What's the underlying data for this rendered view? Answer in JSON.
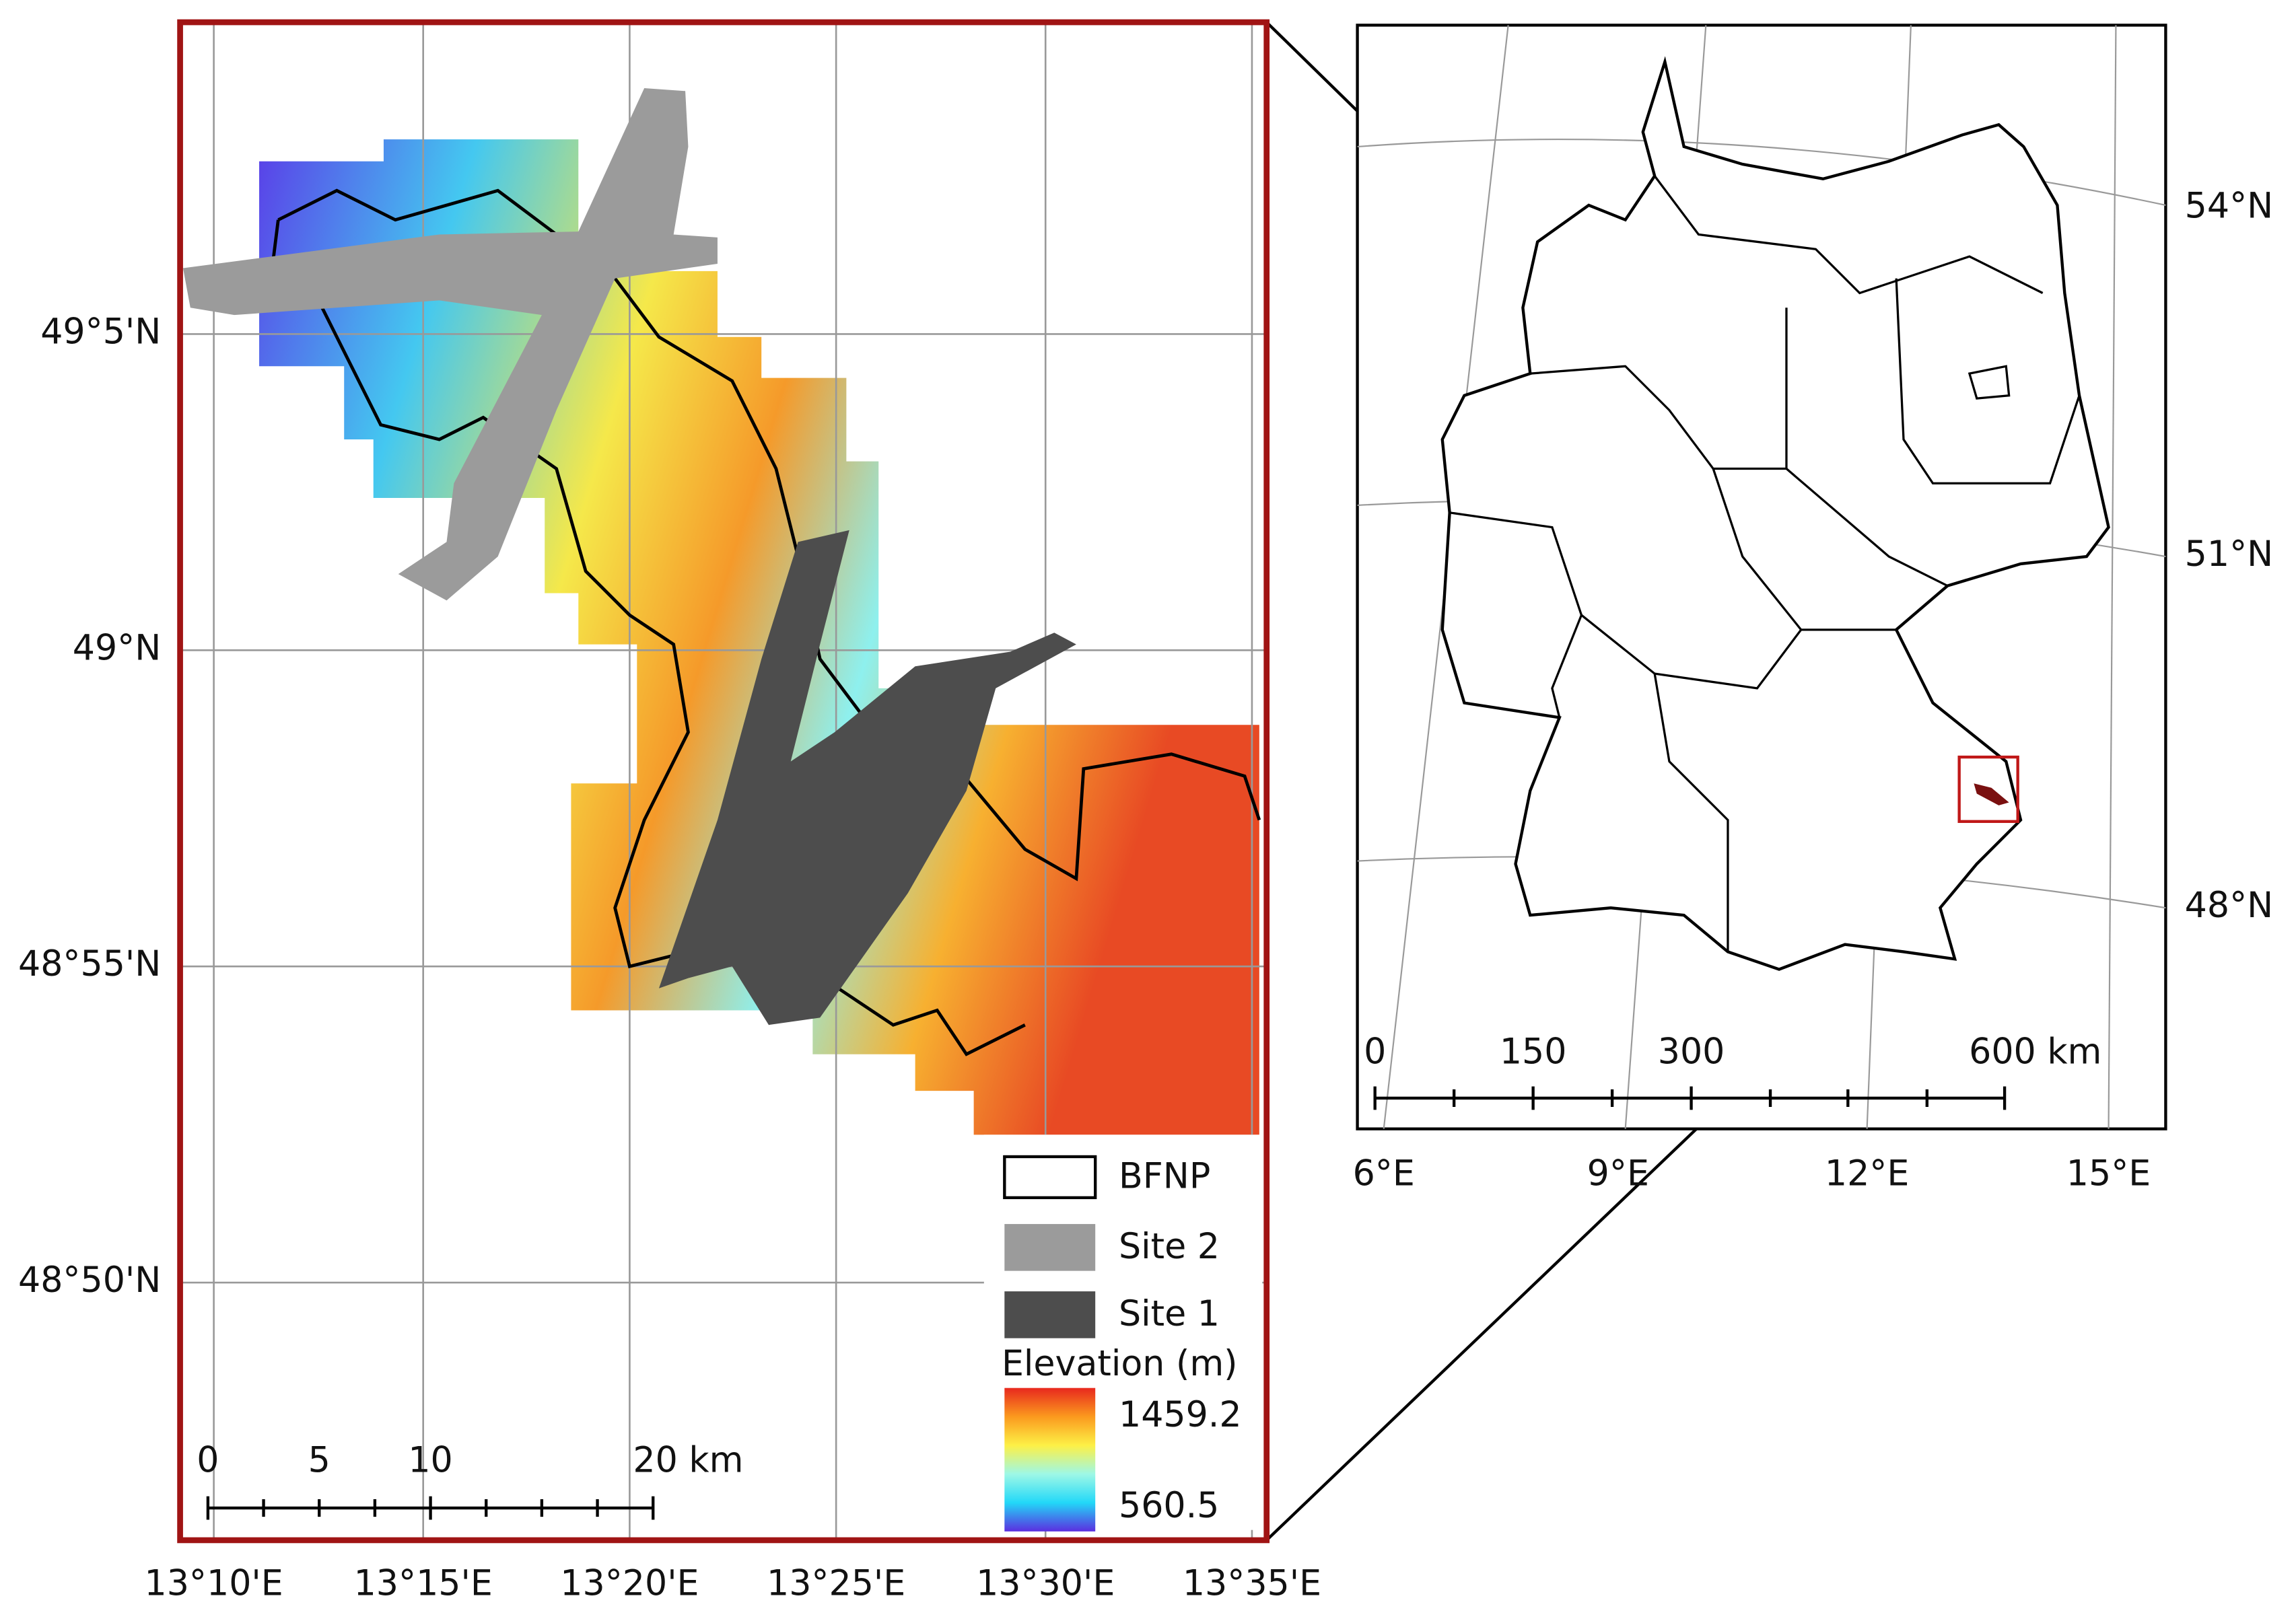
{
  "left_map": {
    "lat_labels": [
      "49°5'N",
      "49°N",
      "48°55'N",
      "48°50'N"
    ],
    "lon_labels": [
      "13°10'E",
      "13°15'E",
      "13°20'E",
      "13°25'E",
      "13°30'E",
      "13°35'E"
    ],
    "scale_labels": [
      "0",
      "5",
      "10",
      "20 km"
    ],
    "legend": {
      "items": [
        "BFNP",
        "Site 2",
        "Site 1"
      ],
      "elevation_title": "Elevation (m)",
      "elevation_max": "1459.2",
      "elevation_min": "560.5"
    }
  },
  "right_map": {
    "lat_labels": [
      "54°N",
      "51°N",
      "48°N"
    ],
    "lon_labels": [
      "6°E",
      "9°E",
      "12°E",
      "15°E"
    ],
    "scale_labels": [
      "0",
      "150",
      "300",
      "600 km"
    ]
  }
}
